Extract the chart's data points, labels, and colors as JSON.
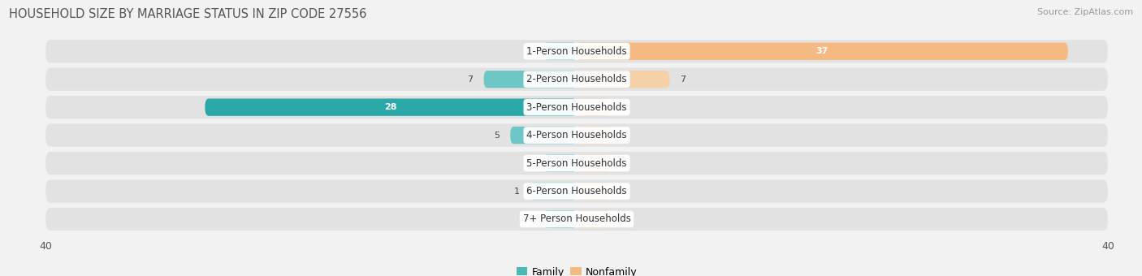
{
  "title": "HOUSEHOLD SIZE BY MARRIAGE STATUS IN ZIP CODE 27556",
  "source": "Source: ZipAtlas.com",
  "categories": [
    "7+ Person Households",
    "6-Person Households",
    "5-Person Households",
    "4-Person Households",
    "3-Person Households",
    "2-Person Households",
    "1-Person Households"
  ],
  "family_values": [
    0,
    1,
    0,
    5,
    28,
    7,
    0
  ],
  "nonfamily_values": [
    0,
    0,
    0,
    0,
    0,
    7,
    37
  ],
  "family_color_light": "#6ec6c6",
  "family_color_dark": "#2ba8a8",
  "nonfamily_color": "#f5ba82",
  "nonfamily_color_light": "#f5d0a9",
  "xlim": 40,
  "background_color": "#f2f2f2",
  "row_bg_color": "#e2e2e2",
  "label_fontsize": 8.5,
  "title_fontsize": 10.5,
  "source_fontsize": 8,
  "value_fontsize": 8,
  "min_bar_size": 3.5,
  "legend_family_color": "#4db8b8",
  "legend_nonfamily_color": "#f5ba82"
}
